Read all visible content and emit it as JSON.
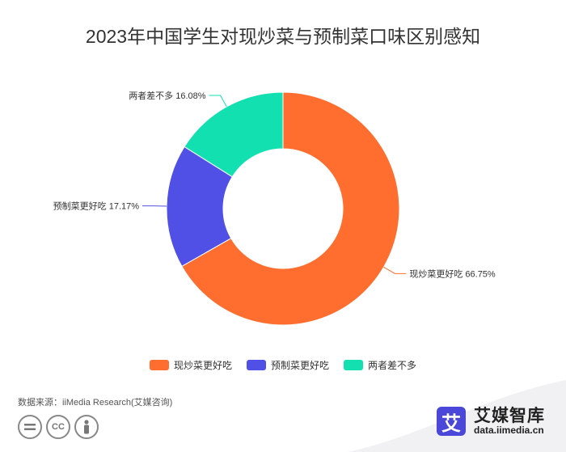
{
  "chart_data": {
    "type": "pie",
    "title": "2023年中国学生对现炒菜与预制菜口味区别感知",
    "categories": [
      "现炒菜更好吃",
      "预制菜更好吃",
      "两者差不多"
    ],
    "values": [
      66.75,
      17.17,
      16.08
    ],
    "colors": [
      "#ff6e2e",
      "#5050e6",
      "#12e0b0"
    ],
    "data_labels": [
      "现炒菜更好吃 66.75%",
      "预制菜更好吃 17.17%",
      "两者差不多 16.08%"
    ],
    "legend": [
      "现炒菜更好吃",
      "预制菜更好吃",
      "两者差不多"
    ],
    "legend_position": "bottom"
  },
  "footer": {
    "source": "数据来源：iiMedia Research(艾媒咨询)",
    "cc_icons": [
      "equals-icon",
      "cc-icon",
      "person-icon"
    ],
    "cc_label": "CC"
  },
  "brand": {
    "mark": "艾",
    "name": "艾媒智库",
    "url": "data.iimedia.cn",
    "color": "#4a47d9"
  }
}
